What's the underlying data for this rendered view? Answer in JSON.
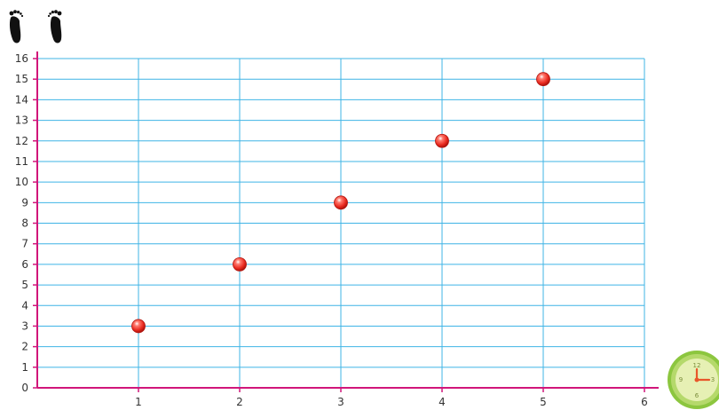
{
  "icons": {
    "y_axis_icon": "footprints-icon",
    "x_axis_icon": "clock-icon",
    "clock_numbers": [
      "12",
      "3",
      "6",
      "9"
    ]
  },
  "colors": {
    "grid": "#3fb4e6",
    "axis": "#d1167a",
    "point": "#e8281e",
    "point_highlight": "#ffffff",
    "text": "#333333",
    "clock_frame": "#8cc63f",
    "clock_face": "#e6f0b4",
    "clock_hands": "#e8572a"
  },
  "chart_data": {
    "type": "scatter",
    "x": [
      1,
      2,
      3,
      4,
      5
    ],
    "y": [
      3,
      6,
      9,
      12,
      15
    ],
    "xlim": [
      0,
      6
    ],
    "ylim": [
      0,
      16
    ],
    "x_ticks": [
      "1",
      "2",
      "3",
      "4",
      "5",
      "6"
    ],
    "y_ticks": [
      "0",
      "1",
      "2",
      "3",
      "4",
      "5",
      "6",
      "7",
      "8",
      "9",
      "10",
      "11",
      "12",
      "13",
      "14",
      "15",
      "16"
    ],
    "grid": true,
    "legend": "none"
  }
}
